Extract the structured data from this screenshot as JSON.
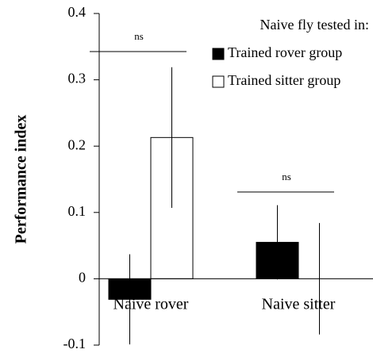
{
  "chart_data": {
    "type": "bar",
    "y_label": "Performance index",
    "legend_title": "Naive fly tested in:",
    "categories": [
      "Naive rover",
      "Naive sitter"
    ],
    "series": [
      {
        "name": "Trained rover group",
        "color": "#000000",
        "values": [
          -0.031,
          0.055
        ],
        "errors": [
          0.068,
          0.056
        ]
      },
      {
        "name": "Trained sitter group",
        "color": "#ffffff",
        "values": [
          0.213,
          0
        ],
        "errors": [
          0.106,
          0.084
        ]
      }
    ],
    "annotations": [
      "ns",
      "ns"
    ],
    "ylim": [
      -0.1,
      0.4
    ],
    "yticks": [
      -0.1,
      0,
      0.1,
      0.2,
      0.3,
      0.4
    ],
    "grid": false,
    "legend": "upper right"
  }
}
